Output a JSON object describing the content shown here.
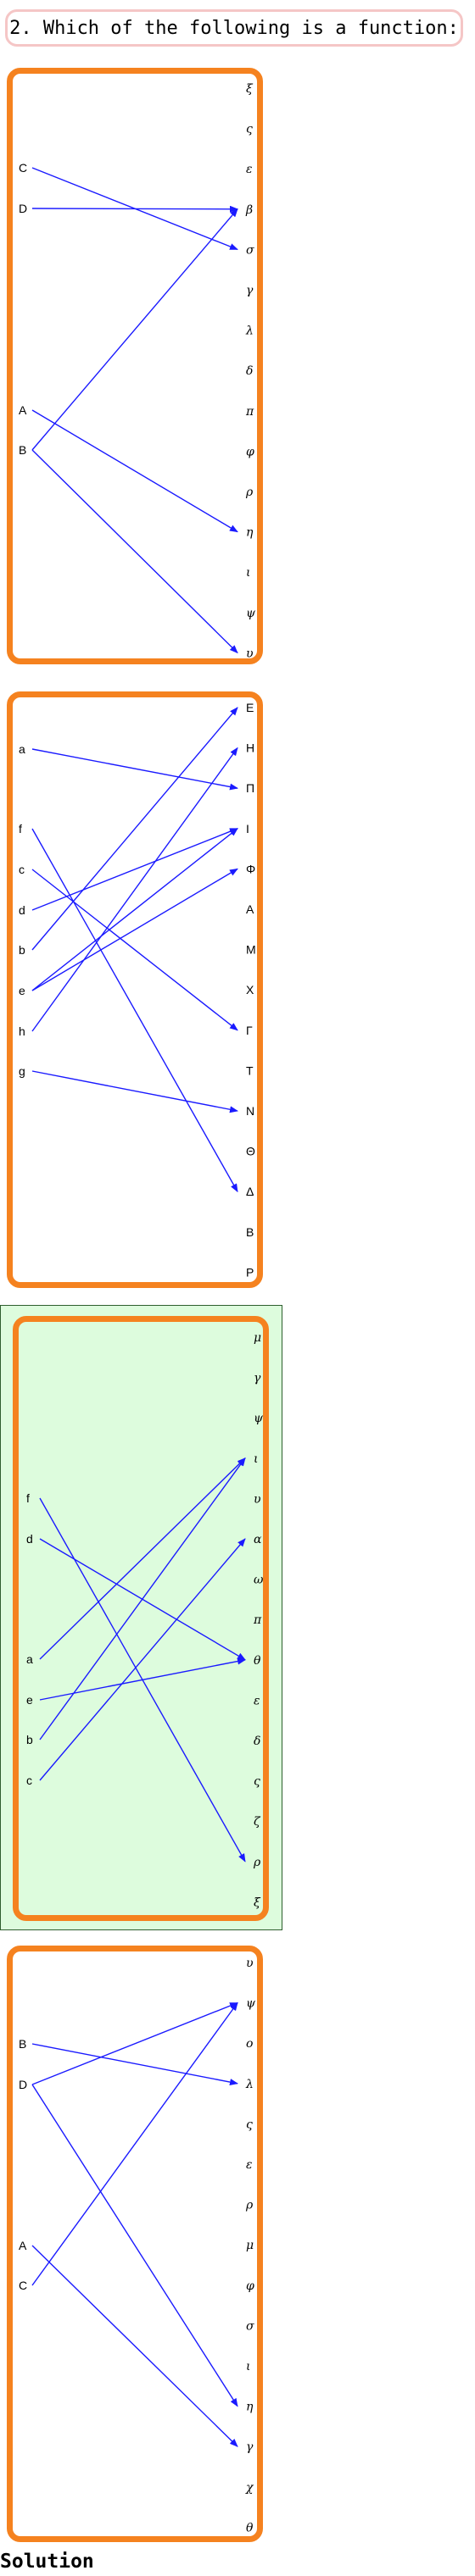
{
  "question": "2. Which of the following is a function:",
  "solution_label": "Solution",
  "colors": {
    "panel_border": "#f5821f",
    "arrow": "#1a1aff",
    "selected_bg": "#ddfcdd",
    "question_border": "#f5c6c6"
  },
  "panels": [
    {
      "domain": [
        "C",
        "D",
        "A",
        "B"
      ],
      "codomain": [
        "ξ",
        "ς",
        "ε",
        "β",
        "σ",
        "γ",
        "λ",
        "δ",
        "π",
        "φ",
        "ρ",
        "η",
        "ι",
        "ψ",
        "υ"
      ],
      "mappings": [
        [
          "C",
          "σ"
        ],
        [
          "D",
          "β"
        ],
        [
          "A",
          "η"
        ],
        [
          "B",
          "β"
        ],
        [
          "B",
          "υ"
        ]
      ],
      "selected": false
    },
    {
      "domain": [
        "a",
        "f",
        "c",
        "d",
        "b",
        "e",
        "h",
        "g"
      ],
      "codomain": [
        "E",
        "H",
        "Π",
        "I",
        "Φ",
        "A",
        "M",
        "X",
        "Γ",
        "T",
        "N",
        "Θ",
        "Δ",
        "B",
        "P"
      ],
      "mappings": [
        [
          "a",
          "Π"
        ],
        [
          "f",
          "Δ"
        ],
        [
          "c",
          "Γ"
        ],
        [
          "d",
          "I"
        ],
        [
          "b",
          "E"
        ],
        [
          "e",
          "I"
        ],
        [
          "e",
          "Φ"
        ],
        [
          "h",
          "H"
        ],
        [
          "g",
          "N"
        ]
      ],
      "selected": false
    },
    {
      "domain": [
        "f",
        "d",
        "a",
        "e",
        "b",
        "c"
      ],
      "codomain": [
        "μ",
        "γ",
        "ψ",
        "ι",
        "υ",
        "α",
        "ω",
        "π",
        "θ",
        "ε",
        "δ",
        "ς",
        "ζ",
        "ρ",
        "ξ"
      ],
      "mappings": [
        [
          "f",
          "ρ"
        ],
        [
          "d",
          "θ"
        ],
        [
          "a",
          "ι"
        ],
        [
          "e",
          "θ"
        ],
        [
          "b",
          "ι"
        ],
        [
          "c",
          "α"
        ]
      ],
      "selected": true
    },
    {
      "domain": [
        "B",
        "D",
        "A",
        "C"
      ],
      "codomain": [
        "υ",
        "ψ",
        "ο",
        "λ",
        "ς",
        "ε",
        "ρ",
        "μ",
        "φ",
        "σ",
        "ι",
        "η",
        "γ",
        "χ",
        "θ"
      ],
      "mappings": [
        [
          "B",
          "λ"
        ],
        [
          "D",
          "ψ"
        ],
        [
          "D",
          "η"
        ],
        [
          "A",
          "γ"
        ],
        [
          "C",
          "ψ"
        ]
      ],
      "selected": false
    }
  ]
}
